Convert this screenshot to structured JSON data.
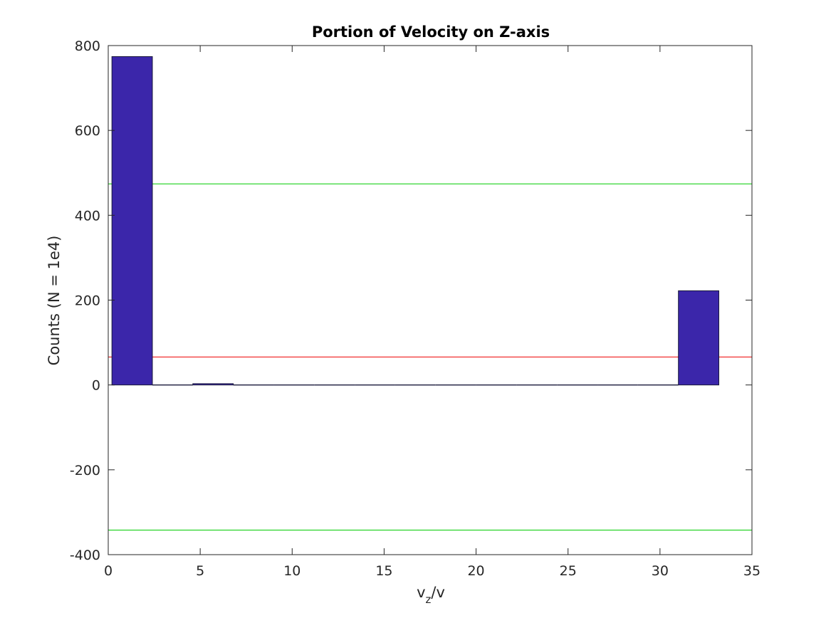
{
  "chart_data": {
    "type": "bar",
    "title": "Portion of Velocity on Z-axis",
    "xlabel": {
      "main": "v",
      "sub": "z",
      "suffix": "/v"
    },
    "ylabel": "Counts (N = 1e4)",
    "xlim": [
      0,
      35
    ],
    "ylim": [
      -400,
      800
    ],
    "xticks": [
      0,
      5,
      10,
      15,
      20,
      25,
      30,
      35
    ],
    "yticks": [
      -400,
      -200,
      0,
      200,
      400,
      600,
      800
    ],
    "xtick_labels": [
      "0",
      "5",
      "10",
      "15",
      "20",
      "25",
      "30",
      "35"
    ],
    "ytick_labels": [
      "-400",
      "-200",
      "0",
      "200",
      "400",
      "600",
      "800"
    ],
    "grid": false,
    "bin_width": 2.2,
    "bins": [
      {
        "left": 0.2,
        "right": 2.4,
        "value": 774
      },
      {
        "left": 2.4,
        "right": 4.6,
        "value": 0
      },
      {
        "left": 4.6,
        "right": 6.8,
        "value": 3
      },
      {
        "left": 6.8,
        "right": 9.0,
        "value": 0
      },
      {
        "left": 9.0,
        "right": 11.2,
        "value": 0
      },
      {
        "left": 11.2,
        "right": 13.4,
        "value": 0
      },
      {
        "left": 13.4,
        "right": 15.6,
        "value": 0
      },
      {
        "left": 15.6,
        "right": 17.8,
        "value": 0
      },
      {
        "left": 17.8,
        "right": 20.0,
        "value": 0
      },
      {
        "left": 20.0,
        "right": 22.2,
        "value": 0
      },
      {
        "left": 22.2,
        "right": 24.4,
        "value": 0
      },
      {
        "left": 24.4,
        "right": 26.6,
        "value": 0
      },
      {
        "left": 26.6,
        "right": 28.8,
        "value": 0
      },
      {
        "left": 28.8,
        "right": 31.0,
        "value": 0
      },
      {
        "left": 31.0,
        "right": 33.2,
        "value": 222
      }
    ],
    "reference_lines": [
      {
        "y": 474,
        "color": "#00cc00"
      },
      {
        "y": 66,
        "color": "#ee0000"
      },
      {
        "y": -342,
        "color": "#00cc00"
      }
    ],
    "bar_color": "#3b26aa",
    "bar_edge_color": "#1a1a3a"
  }
}
